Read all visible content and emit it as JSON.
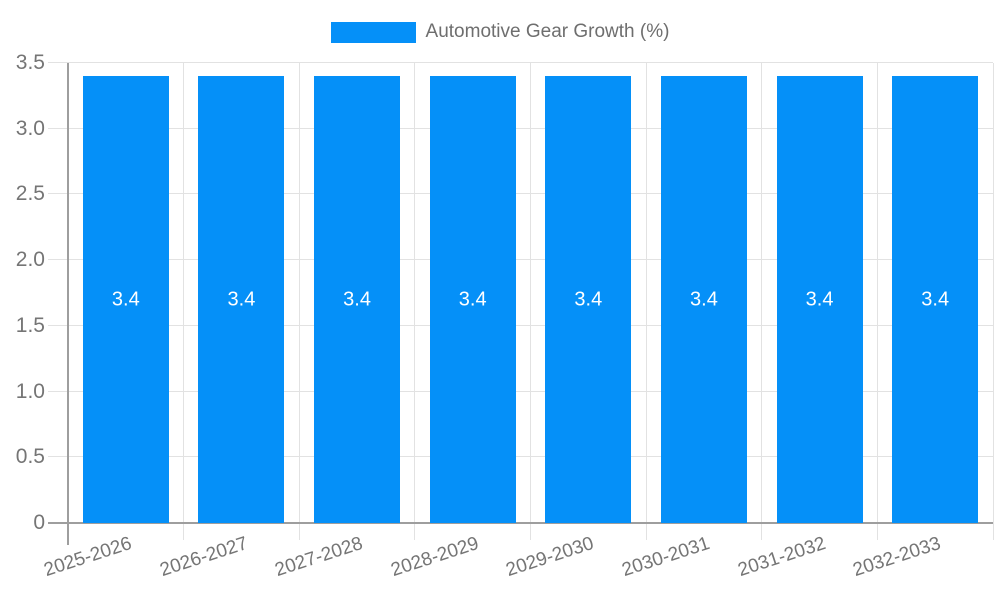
{
  "chart_data": {
    "type": "bar",
    "title": "Automotive Gear Growth (%)",
    "categories": [
      "2025-2026",
      "2026-2027",
      "2027-2028",
      "2028-2029",
      "2029-2030",
      "2030-2031",
      "2031-2032",
      "2032-2033"
    ],
    "values": [
      3.4,
      3.4,
      3.4,
      3.4,
      3.4,
      3.4,
      3.4,
      3.4
    ],
    "bar_labels": [
      "3.4",
      "3.4",
      "3.4",
      "3.4",
      "3.4",
      "3.4",
      "3.4",
      "3.4"
    ],
    "xlabel": "",
    "ylabel": "",
    "ylim": [
      0,
      3.5
    ],
    "yticks": [
      0,
      0.5,
      1,
      1.5,
      2,
      2.5,
      3,
      3.5
    ],
    "ytick_labels": [
      "0",
      "0.5",
      "1.0",
      "1.5",
      "2.0",
      "2.5",
      "3.0",
      "3.5"
    ],
    "grid": true,
    "legend_position": "top-center",
    "colors": {
      "bar": "#0590f8",
      "axis": "#9e9e9e",
      "grid": "#e2e2e2",
      "tick_label": "#757575",
      "bar_label": "#ffffff",
      "legend_text": "#6e6e6e",
      "background": "#ffffff"
    }
  }
}
